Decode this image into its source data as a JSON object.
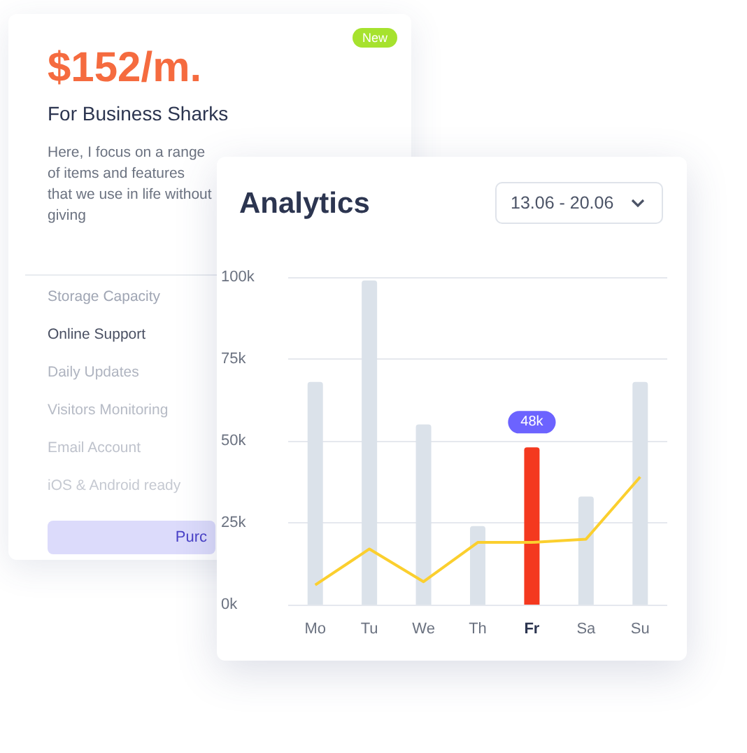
{
  "chart_data": [
    {
      "type": "other",
      "title": "$152/m.",
      "subtitle": "For Business Sharks",
      "annotations": [
        "New",
        "Here, I focus on a range of items and features that we use in life without giving",
        "Storage Capacity",
        "Online Support",
        "Daily Updates",
        "Visitors Monitoring",
        "Email Account",
        "iOS & Android ready",
        "Purc"
      ]
    },
    {
      "type": "bar",
      "title": "Analytics",
      "annotations": [
        "13.06 - 20.06"
      ],
      "categories": [
        "Mo",
        "Tu",
        "We",
        "Th",
        "Fr",
        "Sa",
        "Su"
      ],
      "ylim": [
        0,
        100
      ],
      "yticks": [
        {
          "value": 0,
          "label": "0k"
        },
        {
          "value": 25,
          "label": "25k"
        },
        {
          "value": 50,
          "label": "50k"
        },
        {
          "value": 75,
          "label": "75k"
        },
        {
          "value": 100,
          "label": "100k"
        }
      ],
      "grid": "y",
      "series": [
        {
          "type": "bar",
          "colors": [
            "#dbe2ea",
            "#dbe2ea",
            "#dbe2ea",
            "#dbe2ea",
            "#f4391f",
            "#dbe2ea",
            "#dbe2ea"
          ],
          "values": [
            68,
            99,
            55,
            24,
            48,
            33,
            68
          ],
          "value_labels": [
            null,
            null,
            null,
            null,
            "48k",
            null,
            null
          ]
        },
        {
          "type": "line",
          "color": "#fbcf2e",
          "values": [
            6,
            17,
            7,
            19,
            19,
            20,
            39
          ]
        }
      ]
    }
  ]
}
